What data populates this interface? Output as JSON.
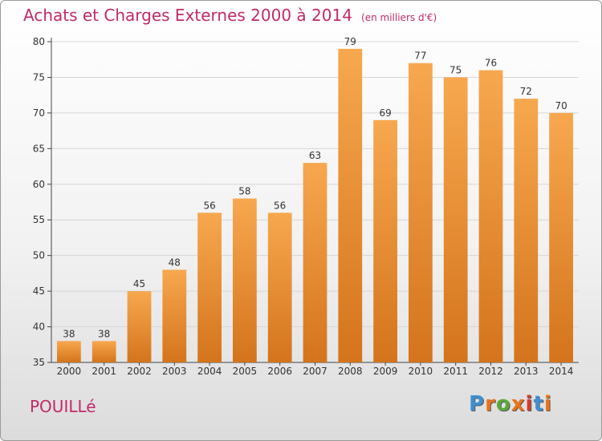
{
  "header": {
    "title": "Achats et Charges Externes 2000 à 2014",
    "subtitle": "(en milliers d'€)"
  },
  "footer": {
    "commune": "POUILLé",
    "logo_text": "Proxiti"
  },
  "colors": {
    "bar_top": "#f7a84f",
    "bar_bottom": "#d4741c",
    "title": "#c02a6a",
    "logo": [
      "#3f8fd2",
      "#e8731c",
      "#5aa83a",
      "#e8731c",
      "#d43d2a",
      "#3f8fd2",
      "#e8731c"
    ]
  },
  "chart_data": {
    "type": "bar",
    "title": "Achats et Charges Externes 2000 à 2014",
    "subtitle": "(en milliers d'€)",
    "categories": [
      "2000",
      "2001",
      "2002",
      "2003",
      "2004",
      "2005",
      "2006",
      "2007",
      "2008",
      "2009",
      "2010",
      "2011",
      "2012",
      "2013",
      "2014"
    ],
    "values": [
      38,
      38,
      45,
      48,
      56,
      58,
      56,
      63,
      79,
      69,
      77,
      75,
      76,
      72,
      70
    ],
    "ylim": [
      35,
      80
    ],
    "yticks": [
      35,
      40,
      45,
      50,
      55,
      60,
      65,
      70,
      75,
      80
    ],
    "grid": true,
    "data_labels": true
  }
}
